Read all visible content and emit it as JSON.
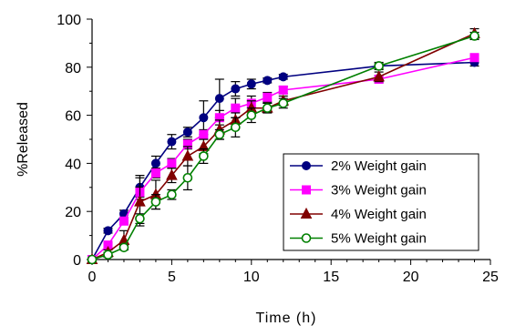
{
  "chart_data": {
    "type": "line",
    "title": "",
    "xlabel": "Time (h)",
    "ylabel": "%Released",
    "xlim": [
      0,
      25
    ],
    "ylim": [
      0,
      100
    ],
    "xticks": [
      0,
      5,
      10,
      15,
      20,
      25
    ],
    "yticks": [
      0,
      20,
      40,
      60,
      80,
      100
    ],
    "grid": false,
    "legend_position": "bottom-right",
    "series": [
      {
        "name": "2% Weight gain",
        "color": "#000080",
        "fill": "#000080",
        "marker": "circle",
        "x": [
          0,
          1,
          2,
          3,
          4,
          5,
          6,
          7,
          8,
          9,
          10,
          11,
          12,
          18,
          24
        ],
        "y": [
          0,
          12,
          19,
          30,
          40,
          49,
          53,
          59,
          67,
          71,
          73,
          74.5,
          76,
          80.5,
          82
        ],
        "err": [
          0,
          1,
          1.5,
          5,
          3,
          3,
          2,
          7,
          8,
          3,
          2,
          1,
          1,
          1,
          1.5
        ]
      },
      {
        "name": "3% Weight gain",
        "color": "#FF00FF",
        "fill": "#FF00FF",
        "marker": "square",
        "x": [
          0,
          1,
          2,
          3,
          4,
          5,
          6,
          7,
          8,
          9,
          10,
          11,
          12,
          18,
          24
        ],
        "y": [
          0,
          6,
          16,
          28,
          36,
          40,
          48,
          52,
          59,
          63,
          65,
          67.5,
          70.5,
          75,
          84
        ],
        "err": [
          0,
          1,
          1.5,
          2,
          2,
          2,
          2,
          2,
          3,
          4,
          3,
          2,
          1.5,
          1.5,
          1
        ]
      },
      {
        "name": "4% Weight gain",
        "color": "#800000",
        "fill": "#800000",
        "marker": "triangle",
        "x": [
          0,
          1,
          2,
          3,
          4,
          5,
          6,
          7,
          8,
          9,
          10,
          11,
          12,
          18,
          24
        ],
        "y": [
          0,
          3,
          8,
          24,
          27,
          35,
          43,
          47,
          54,
          58,
          63,
          63,
          66,
          76,
          94
        ],
        "err": [
          0,
          1,
          4,
          10,
          6,
          3,
          4,
          3,
          4,
          3,
          3,
          2,
          2,
          2,
          2
        ]
      },
      {
        "name": "5% Weight gain",
        "color": "#008000",
        "fill": "#FFFFFF",
        "marker": "circle-open",
        "x": [
          0,
          1,
          2,
          3,
          4,
          5,
          6,
          7,
          8,
          9,
          10,
          11,
          12,
          18,
          24
        ],
        "y": [
          0,
          2,
          5,
          17,
          24,
          27,
          34,
          43,
          52,
          55,
          60,
          63,
          65,
          80.5,
          93
        ],
        "err": [
          0,
          1,
          1,
          2,
          3,
          2,
          5,
          3,
          2,
          4,
          3,
          2,
          2,
          1.5,
          1.5
        ]
      }
    ]
  }
}
